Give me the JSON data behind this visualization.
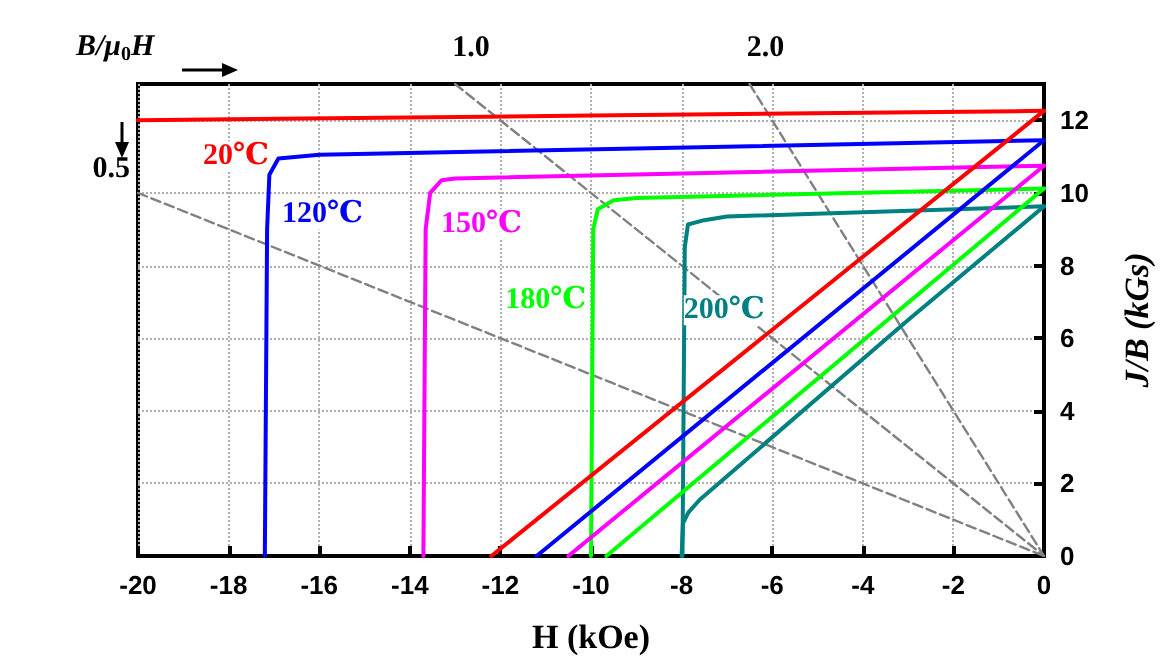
{
  "chart_data": {
    "type": "line",
    "xlabel": "H (kOe)",
    "ylabel": "J/B (kGs)",
    "xlim": [
      -20,
      0
    ],
    "xticks": [
      -20,
      -18,
      -16,
      -14,
      -12,
      -10,
      -8,
      -6,
      -4,
      -2,
      0
    ],
    "ylim": [
      0,
      13
    ],
    "yticks": [
      0,
      2,
      4,
      6,
      8,
      10,
      12
    ],
    "grid": true,
    "legend": false,
    "marker": "none",
    "annotations": [
      "B/μ$_{0}$H",
      {
        "text": "0.5",
        "x": -20,
        "y": 10
      },
      {
        "text": "1.0",
        "x": -13,
        "y": 13
      },
      {
        "text": "2.0",
        "x": -6.5,
        "y": 13
      }
    ],
    "series": [
      {
        "name": "20℃",
        "color": "#ff0000",
        "x": [
          -20,
          -10,
          0
        ],
        "values": [
          12.0,
          12.13,
          12.26
        ]
      },
      {
        "name": "120℃",
        "color": "#0000ff",
        "x": [
          -17.2,
          -17.15,
          -17.1,
          -16.9,
          -16,
          0
        ],
        "values": [
          0,
          9,
          10.5,
          10.95,
          11.05,
          11.45
        ]
      },
      {
        "name": "150℃",
        "color": "#ff00ff",
        "x": [
          -13.7,
          -13.65,
          -13.55,
          -13.3,
          -13,
          0
        ],
        "values": [
          0,
          9,
          10.0,
          10.35,
          10.4,
          10.75
        ]
      },
      {
        "name": "180℃",
        "color": "#00ff00",
        "x": [
          -10,
          -9.95,
          -9.85,
          -9.5,
          -9,
          0
        ],
        "values": [
          0,
          9,
          9.55,
          9.8,
          9.86,
          10.12
        ]
      },
      {
        "name": "200℃",
        "color": "#008080",
        "x": [
          -7.98,
          -7.93,
          -7.86,
          -7.5,
          -7,
          0
        ],
        "values": [
          0,
          8.5,
          9.13,
          9.25,
          9.35,
          9.63
        ]
      },
      {
        "color": "#ff0000",
        "x": [
          -12.2,
          0
        ],
        "values": [
          0,
          12.26
        ]
      },
      {
        "color": "#0000ff",
        "x": [
          -11.2,
          0
        ],
        "values": [
          0,
          11.45
        ]
      },
      {
        "color": "#ff00ff",
        "x": [
          -10.5,
          0
        ],
        "values": [
          0,
          10.75
        ]
      },
      {
        "color": "#00ff00",
        "x": [
          -9.66,
          0
        ],
        "values": [
          0,
          10.12
        ]
      },
      {
        "color": "#008080",
        "x": [
          -8,
          -7.97,
          -7.85,
          -7.6,
          -3,
          0
        ],
        "values": [
          0,
          0.9,
          1.2,
          1.55,
          6.5,
          9.63
        ]
      },
      {
        "color": "#808080",
        "line_style": "dashed",
        "x": [
          -20,
          0
        ],
        "values": [
          10,
          0
        ]
      },
      {
        "color": "#808080",
        "line_style": "dashed",
        "x": [
          -13,
          0
        ],
        "values": [
          13,
          0
        ]
      },
      {
        "color": "#808080",
        "line_style": "dashed",
        "x": [
          -6.5,
          0
        ],
        "values": [
          13,
          0
        ]
      }
    ]
  }
}
